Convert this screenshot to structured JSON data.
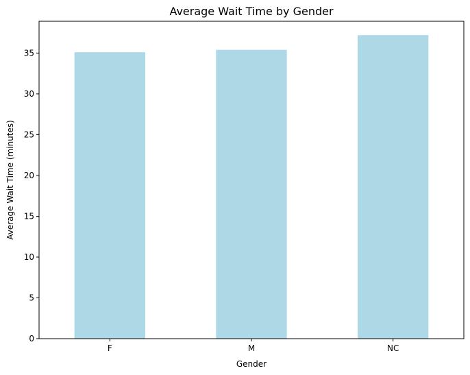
{
  "chart_data": {
    "type": "bar",
    "title": "Average Wait Time by Gender",
    "xlabel": "Gender",
    "ylabel": "Average Wait Time (minutes)",
    "categories": [
      "F",
      "M",
      "NC"
    ],
    "values": [
      35.1,
      35.4,
      37.2
    ],
    "ylim": [
      0,
      38.9
    ],
    "yticks": [
      0,
      5,
      10,
      15,
      20,
      25,
      30,
      35
    ],
    "grid": false,
    "legend": "none",
    "bar_color": "#add8e6",
    "axis_color": "#000000",
    "background_color": "#ffffff"
  }
}
